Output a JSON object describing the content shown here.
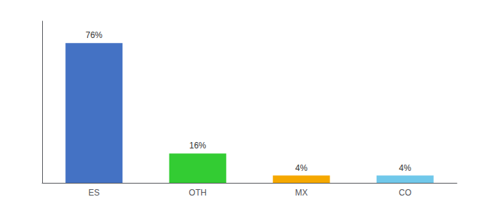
{
  "chart_data": {
    "type": "bar",
    "categories": [
      "ES",
      "OTH",
      "MX",
      "CO"
    ],
    "values": [
      76,
      16,
      4,
      4
    ],
    "value_labels": [
      "76%",
      "16%",
      "4%",
      "4%"
    ],
    "data_labels": true,
    "colors": [
      "#4472C4",
      "#33CC33",
      "#F5A800",
      "#70C8EA"
    ],
    "ylim": [
      0,
      88
    ],
    "tick_labels": "x",
    "grid": false
  }
}
